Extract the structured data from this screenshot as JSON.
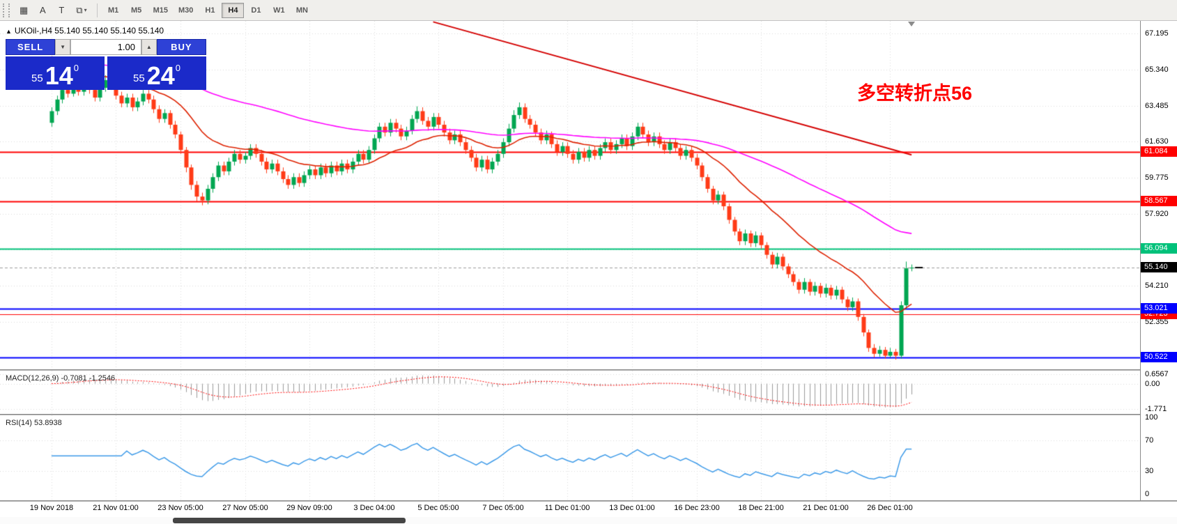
{
  "toolbar": {
    "tools": [
      {
        "name": "chart-list-icon",
        "glyph": "▦"
      },
      {
        "name": "font-tool-icon",
        "glyph": "A"
      },
      {
        "name": "text-label-tool-icon",
        "glyph": "T"
      },
      {
        "name": "objects-tool-icon",
        "glyph": "⧉",
        "dropdown": "▾"
      }
    ],
    "timeframes": [
      {
        "label": "M1",
        "active": false
      },
      {
        "label": "M5",
        "active": false
      },
      {
        "label": "M15",
        "active": false
      },
      {
        "label": "M30",
        "active": false
      },
      {
        "label": "H1",
        "active": false
      },
      {
        "label": "H4",
        "active": true
      },
      {
        "label": "D1",
        "active": false
      },
      {
        "label": "W1",
        "active": false
      },
      {
        "label": "MN",
        "active": false
      }
    ]
  },
  "symbol_header": {
    "collapse_icon": "▲",
    "symbol": "UKOil-,H4",
    "ohlc": "55.140 55.140 55.140 55.140"
  },
  "trade_panel": {
    "sell_label": "SELL",
    "buy_label": "BUY",
    "volume": "1.00",
    "spin_down": "▼",
    "spin_up": "▲",
    "bid": {
      "small": "55",
      "big": "14",
      "sup": "0"
    },
    "ask": {
      "small": "55",
      "big": "24",
      "sup": "0"
    }
  },
  "annotation": {
    "text": "多空转折点56",
    "color": "#ff0000"
  },
  "indicators": {
    "macd": {
      "title": "MACD(12,26,9)",
      "values": "-0.7081 -1.2546",
      "ticks": [
        "0.6567",
        "0.00",
        "-1.771"
      ]
    },
    "rsi": {
      "title": "RSI(14)",
      "value": "53.8938",
      "ticks": [
        "100",
        "70",
        "30",
        "0"
      ]
    }
  },
  "levels": [
    {
      "price": 61.084,
      "label": "61.084",
      "color": "#ff0000",
      "width": 2,
      "z": 1
    },
    {
      "price": 58.567,
      "label": "58.567",
      "color": "#ff0000",
      "width": 2,
      "z": 1
    },
    {
      "price": 56.094,
      "label": "56.094",
      "color": "#00c17a",
      "width": 2,
      "z": 1
    },
    {
      "price": 53.021,
      "label": "53.021",
      "color": "#0000ff",
      "width": 2,
      "z": 3
    },
    {
      "price": 52.723,
      "label": "52.723",
      "color": "#ff0000",
      "width": 1,
      "z": 2
    },
    {
      "price": 50.522,
      "label": "50.522",
      "color": "#0000ff",
      "width": 2,
      "z": 1
    }
  ],
  "current_price": {
    "label": "55.140",
    "price": 55.14,
    "color": "#000000"
  },
  "colors": {
    "up": "#00a651",
    "down": "#ff3b17",
    "ma_fast": "#dd2200",
    "ma_slow": "#ff00ff",
    "trendline": "#d40000",
    "macd_hist": "#9a9a9a",
    "macd_signal": "#ff0000",
    "rsi_line": "#3d9ae8",
    "grid": "#d9d9d9",
    "trade_blue": "#2e41d6",
    "trade_dark_blue": "#1b2ac9",
    "annotation_red": "#ff0000"
  },
  "chart_data": {
    "type": "candlestick",
    "symbol": "UKOil-",
    "timeframe": "H4",
    "y_range": [
      67.85,
      49.9
    ],
    "grid_prices": [
      67.195,
      65.34,
      63.485,
      61.63,
      59.775,
      57.92,
      56.065,
      54.21,
      52.355,
      50.5
    ],
    "price_ticks": [
      "67.195",
      "65.340",
      "63.485",
      "61.630",
      "59.775",
      "57.920",
      "54.210",
      "52.355"
    ],
    "time_ticks": [
      {
        "index": 0,
        "label": "19 Nov 2018"
      },
      {
        "index": 12,
        "label": "21 Nov 01:00"
      },
      {
        "index": 24,
        "label": "23 Nov 05:00"
      },
      {
        "index": 36,
        "label": "27 Nov 05:00"
      },
      {
        "index": 48,
        "label": "29 Nov 09:00"
      },
      {
        "index": 60,
        "label": "3 Dec 04:00"
      },
      {
        "index": 72,
        "label": "5 Dec 05:00"
      },
      {
        "index": 84,
        "label": "7 Dec 05:00"
      },
      {
        "index": 96,
        "label": "11 Dec 01:00"
      },
      {
        "index": 108,
        "label": "13 Dec 01:00"
      },
      {
        "index": 120,
        "label": "16 Dec 23:00"
      },
      {
        "index": 132,
        "label": "18 Dec 21:00"
      },
      {
        "index": 144,
        "label": "21 Dec 01:00"
      },
      {
        "index": 156,
        "label": "26 Dec 01:00"
      }
    ],
    "trendline": {
      "i1": 71,
      "p1": 67.8,
      "i2": 160,
      "p2": 60.95
    },
    "ma_fast": {
      "period": 21,
      "seed": 66.3
    },
    "ma_slow": {
      "period": 80,
      "seed": 66.0
    },
    "macd": {
      "fast": 12,
      "slow": 26,
      "signal": 9,
      "range": [
        0.9,
        -2.1
      ]
    },
    "rsi": {
      "period": 14,
      "range": [
        103,
        -8
      ]
    },
    "ohlc": [
      [
        62.6,
        63.4,
        62.4,
        63.2
      ],
      [
        63.2,
        64.0,
        63.0,
        63.8
      ],
      [
        63.8,
        64.55,
        63.6,
        64.3
      ],
      [
        64.3,
        64.5,
        63.9,
        64.1
      ],
      [
        64.1,
        64.75,
        63.95,
        64.5
      ],
      [
        64.5,
        64.7,
        64.0,
        64.2
      ],
      [
        64.2,
        64.85,
        64.0,
        64.6
      ],
      [
        64.6,
        64.8,
        64.1,
        64.3
      ],
      [
        64.3,
        64.5,
        63.7,
        63.9
      ],
      [
        63.9,
        64.6,
        63.7,
        64.4
      ],
      [
        64.4,
        65.05,
        64.2,
        64.8
      ],
      [
        64.8,
        65.0,
        64.3,
        64.5
      ],
      [
        64.5,
        64.7,
        63.8,
        64.0
      ],
      [
        64.0,
        64.2,
        63.4,
        63.6
      ],
      [
        63.6,
        64.1,
        63.4,
        63.9
      ],
      [
        63.9,
        64.1,
        63.2,
        63.4
      ],
      [
        63.4,
        63.9,
        63.2,
        63.7
      ],
      [
        63.7,
        64.3,
        63.5,
        64.1
      ],
      [
        64.1,
        64.3,
        63.6,
        63.8
      ],
      [
        63.8,
        64.0,
        63.1,
        63.3
      ],
      [
        63.3,
        63.5,
        62.6,
        62.8
      ],
      [
        62.8,
        63.3,
        62.6,
        63.1
      ],
      [
        63.1,
        63.25,
        62.3,
        62.5
      ],
      [
        62.5,
        62.7,
        61.8,
        62.0
      ],
      [
        62.0,
        62.15,
        61.0,
        61.2
      ],
      [
        61.2,
        61.35,
        60.05,
        60.3
      ],
      [
        60.3,
        60.45,
        59.15,
        59.4
      ],
      [
        59.4,
        59.6,
        58.55,
        58.8
      ],
      [
        58.8,
        59.0,
        58.35,
        58.6
      ],
      [
        58.6,
        59.4,
        58.4,
        59.2
      ],
      [
        59.2,
        60.0,
        59.0,
        59.8
      ],
      [
        59.8,
        60.6,
        59.6,
        60.4
      ],
      [
        60.4,
        60.6,
        59.9,
        60.1
      ],
      [
        60.1,
        60.8,
        59.9,
        60.6
      ],
      [
        60.6,
        61.2,
        60.4,
        61.0
      ],
      [
        61.0,
        61.2,
        60.5,
        60.7
      ],
      [
        60.7,
        61.1,
        60.5,
        60.9
      ],
      [
        60.9,
        61.5,
        60.7,
        61.3
      ],
      [
        61.3,
        61.5,
        60.8,
        61.0
      ],
      [
        61.0,
        61.2,
        60.4,
        60.6
      ],
      [
        60.6,
        60.8,
        60.0,
        60.2
      ],
      [
        60.2,
        60.7,
        60.0,
        60.5
      ],
      [
        60.5,
        60.7,
        59.9,
        60.1
      ],
      [
        60.1,
        60.3,
        59.5,
        59.7
      ],
      [
        59.7,
        59.9,
        59.2,
        59.4
      ],
      [
        59.4,
        60.0,
        59.2,
        59.8
      ],
      [
        59.8,
        60.0,
        59.3,
        59.5
      ],
      [
        59.5,
        60.1,
        59.3,
        59.9
      ],
      [
        59.9,
        60.4,
        59.7,
        60.2
      ],
      [
        60.2,
        60.4,
        59.7,
        59.9
      ],
      [
        59.9,
        60.5,
        59.7,
        60.3
      ],
      [
        60.3,
        60.5,
        59.8,
        60.0
      ],
      [
        60.0,
        60.6,
        59.8,
        60.4
      ],
      [
        60.4,
        60.6,
        59.9,
        60.1
      ],
      [
        60.1,
        60.7,
        59.9,
        60.5
      ],
      [
        60.5,
        60.7,
        60.0,
        60.2
      ],
      [
        60.2,
        60.8,
        60.0,
        60.6
      ],
      [
        60.6,
        61.2,
        60.4,
        61.0
      ],
      [
        61.0,
        61.2,
        60.5,
        60.7
      ],
      [
        60.7,
        61.4,
        60.5,
        61.2
      ],
      [
        61.2,
        62.0,
        61.0,
        61.8
      ],
      [
        61.8,
        62.6,
        61.6,
        62.4
      ],
      [
        62.4,
        62.6,
        61.9,
        62.1
      ],
      [
        62.1,
        62.8,
        61.9,
        62.6
      ],
      [
        62.6,
        62.8,
        62.1,
        62.3
      ],
      [
        62.3,
        62.5,
        61.7,
        61.9
      ],
      [
        61.9,
        62.4,
        61.7,
        62.2
      ],
      [
        62.2,
        63.0,
        62.0,
        62.8
      ],
      [
        62.8,
        63.45,
        62.6,
        63.2
      ],
      [
        63.2,
        63.4,
        62.5,
        62.7
      ],
      [
        62.7,
        62.9,
        62.2,
        62.4
      ],
      [
        62.4,
        63.1,
        62.2,
        62.9
      ],
      [
        62.9,
        63.1,
        62.3,
        62.5
      ],
      [
        62.5,
        62.7,
        61.9,
        62.1
      ],
      [
        62.1,
        62.3,
        61.5,
        61.7
      ],
      [
        61.7,
        62.2,
        61.5,
        62.0
      ],
      [
        62.0,
        62.2,
        61.4,
        61.6
      ],
      [
        61.6,
        61.8,
        61.0,
        61.2
      ],
      [
        61.2,
        61.4,
        60.6,
        60.8
      ],
      [
        60.8,
        61.0,
        60.1,
        60.3
      ],
      [
        60.3,
        60.9,
        60.1,
        60.7
      ],
      [
        60.7,
        60.9,
        60.0,
        60.2
      ],
      [
        60.2,
        60.8,
        60.0,
        60.6
      ],
      [
        60.6,
        61.2,
        60.4,
        61.0
      ],
      [
        61.0,
        61.8,
        60.8,
        61.6
      ],
      [
        61.6,
        62.55,
        61.4,
        62.3
      ],
      [
        62.3,
        63.25,
        62.1,
        63.0
      ],
      [
        63.0,
        63.65,
        62.8,
        63.4
      ],
      [
        63.4,
        63.6,
        62.6,
        62.8
      ],
      [
        62.8,
        63.0,
        62.3,
        62.5
      ],
      [
        62.5,
        62.7,
        61.9,
        62.1
      ],
      [
        62.1,
        62.3,
        61.5,
        61.7
      ],
      [
        61.7,
        62.2,
        61.5,
        62.0
      ],
      [
        62.0,
        62.15,
        61.3,
        61.5
      ],
      [
        61.5,
        61.7,
        60.9,
        61.1
      ],
      [
        61.1,
        61.6,
        60.9,
        61.4
      ],
      [
        61.4,
        61.6,
        60.8,
        61.0
      ],
      [
        61.0,
        61.2,
        60.5,
        60.7
      ],
      [
        60.7,
        61.3,
        60.5,
        61.1
      ],
      [
        61.1,
        61.3,
        60.6,
        60.8
      ],
      [
        60.8,
        61.4,
        60.6,
        61.2
      ],
      [
        61.2,
        61.4,
        60.7,
        60.9
      ],
      [
        60.9,
        61.5,
        60.7,
        61.3
      ],
      [
        61.3,
        61.8,
        61.1,
        61.6
      ],
      [
        61.6,
        61.8,
        61.0,
        61.2
      ],
      [
        61.2,
        61.7,
        61.0,
        61.5
      ],
      [
        61.5,
        62.0,
        61.3,
        61.8
      ],
      [
        61.8,
        62.0,
        61.2,
        61.4
      ],
      [
        61.4,
        62.1,
        61.2,
        61.9
      ],
      [
        61.9,
        62.6,
        61.7,
        62.4
      ],
      [
        62.4,
        62.6,
        61.8,
        62.0
      ],
      [
        62.0,
        62.2,
        61.4,
        61.6
      ],
      [
        61.6,
        62.1,
        61.4,
        61.9
      ],
      [
        61.9,
        62.1,
        61.3,
        61.5
      ],
      [
        61.5,
        61.7,
        61.0,
        61.2
      ],
      [
        61.2,
        61.8,
        61.0,
        61.6
      ],
      [
        61.6,
        61.8,
        61.1,
        61.3
      ],
      [
        61.3,
        61.5,
        60.7,
        60.9
      ],
      [
        60.9,
        61.4,
        60.7,
        61.2
      ],
      [
        61.2,
        61.4,
        60.6,
        60.8
      ],
      [
        60.8,
        61.0,
        60.2,
        60.4
      ],
      [
        60.4,
        60.55,
        59.6,
        59.8
      ],
      [
        59.8,
        59.95,
        59.0,
        59.2
      ],
      [
        59.2,
        59.35,
        58.4,
        58.6
      ],
      [
        58.6,
        59.1,
        58.4,
        58.9
      ],
      [
        58.9,
        59.05,
        58.1,
        58.3
      ],
      [
        58.3,
        58.45,
        57.4,
        57.6
      ],
      [
        57.6,
        57.75,
        56.8,
        57.0
      ],
      [
        57.0,
        57.15,
        56.3,
        56.5
      ],
      [
        56.5,
        57.1,
        56.3,
        56.9
      ],
      [
        56.9,
        57.05,
        56.2,
        56.4
      ],
      [
        56.4,
        57.0,
        56.2,
        56.8
      ],
      [
        56.8,
        56.95,
        56.1,
        56.3
      ],
      [
        56.3,
        56.45,
        55.6,
        55.8
      ],
      [
        55.8,
        55.95,
        55.1,
        55.3
      ],
      [
        55.3,
        55.9,
        55.1,
        55.7
      ],
      [
        55.7,
        55.85,
        55.0,
        55.2
      ],
      [
        55.2,
        55.35,
        54.6,
        54.8
      ],
      [
        54.8,
        54.95,
        54.2,
        54.4
      ],
      [
        54.4,
        54.55,
        53.8,
        54.0
      ],
      [
        54.0,
        54.6,
        53.8,
        54.4
      ],
      [
        54.4,
        54.55,
        53.7,
        53.9
      ],
      [
        53.9,
        54.4,
        53.7,
        54.2
      ],
      [
        54.2,
        54.35,
        53.6,
        53.8
      ],
      [
        53.8,
        54.3,
        53.6,
        54.1
      ],
      [
        54.1,
        54.25,
        53.5,
        53.7
      ],
      [
        53.7,
        54.2,
        53.5,
        54.0
      ],
      [
        54.0,
        54.15,
        53.3,
        53.5
      ],
      [
        53.5,
        53.65,
        52.9,
        53.1
      ],
      [
        53.1,
        53.6,
        52.9,
        53.4
      ],
      [
        53.4,
        53.55,
        52.4,
        52.6
      ],
      [
        52.6,
        52.75,
        51.6,
        51.8
      ],
      [
        51.8,
        51.95,
        50.8,
        51.0
      ],
      [
        51.0,
        51.2,
        50.5,
        50.7
      ],
      [
        50.7,
        51.1,
        50.55,
        50.9
      ],
      [
        50.9,
        51.05,
        50.45,
        50.6
      ],
      [
        50.6,
        51.0,
        50.5,
        50.8
      ],
      [
        50.8,
        50.95,
        50.4,
        50.6
      ],
      [
        50.6,
        53.4,
        50.45,
        53.2
      ],
      [
        53.2,
        55.45,
        53.0,
        55.1
      ],
      [
        55.1,
        55.3,
        54.95,
        55.14
      ]
    ]
  }
}
